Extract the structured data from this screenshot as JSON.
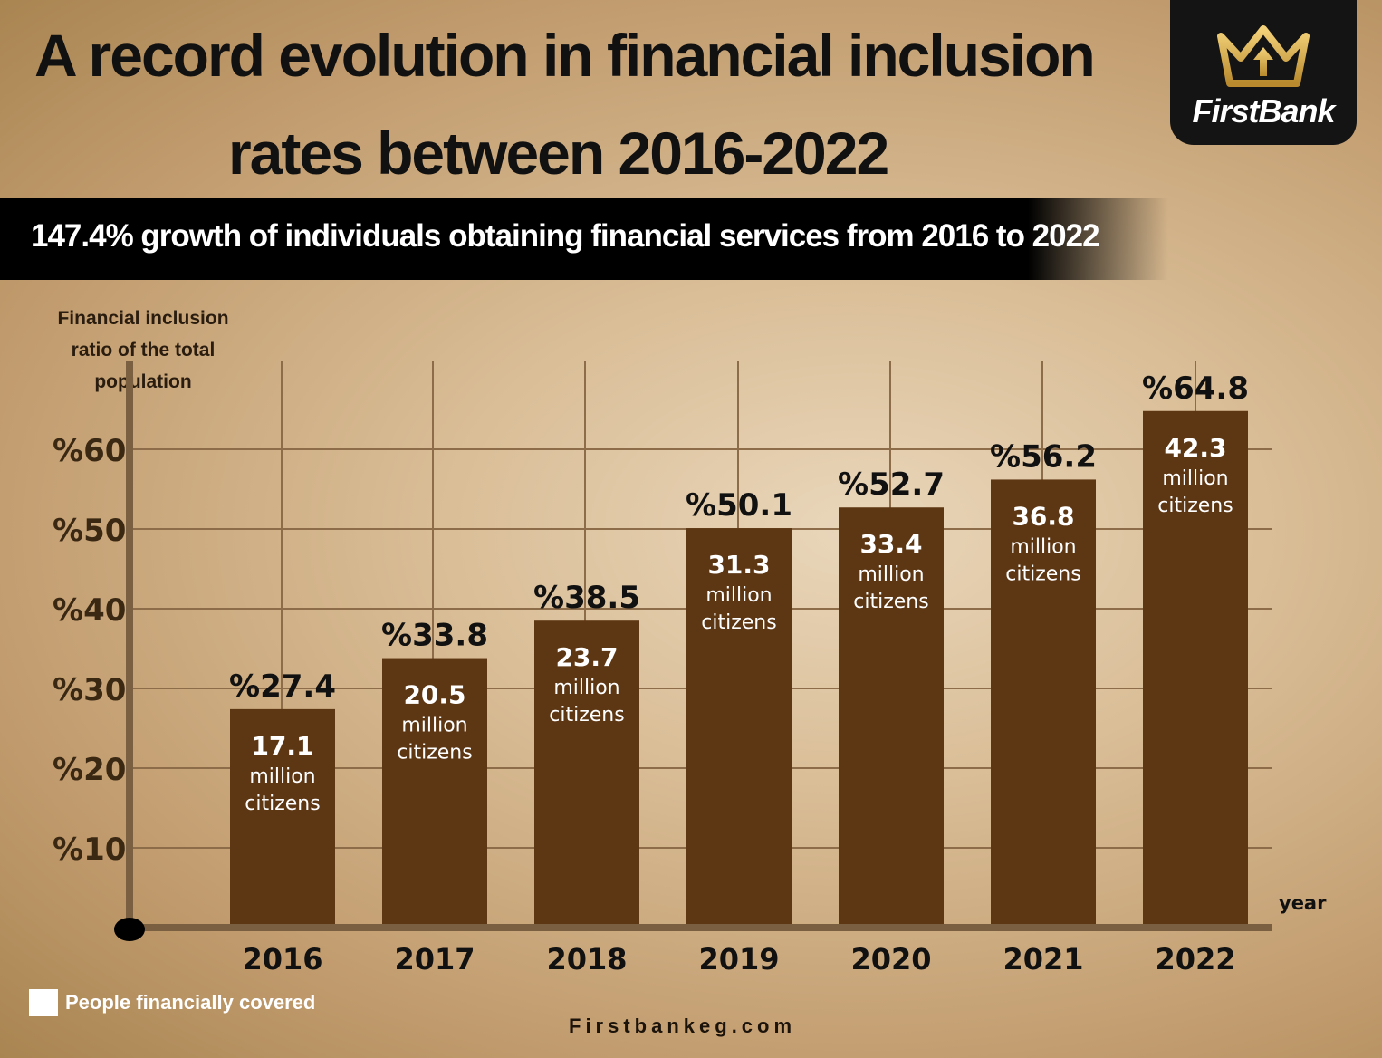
{
  "header": {
    "title_line1": "A record evolution in financial inclusion",
    "title_line2": "rates between 2016-2022",
    "banner": "147.4% growth of individuals obtaining financial services from 2016 to 2022"
  },
  "logo": {
    "text": "FirstBank",
    "icon": "crown-icon"
  },
  "chart_data": {
    "type": "bar",
    "ylabel": "Financial inclusion ratio of the total population",
    "xlabel": "year",
    "ylim": [
      0,
      70
    ],
    "yticks": [
      10,
      20,
      30,
      40,
      50,
      60
    ],
    "ytick_labels": [
      "%10",
      "%20",
      "%30",
      "%40",
      "%50",
      "%60"
    ],
    "categories": [
      "2016",
      "2017",
      "2018",
      "2019",
      "2020",
      "2021",
      "2022"
    ],
    "values": [
      27.4,
      33.8,
      38.5,
      50.1,
      52.7,
      56.2,
      64.8
    ],
    "value_labels": [
      "%27.4",
      "%33.8",
      "%38.5",
      "%50.1",
      "%52.7",
      "%56.2",
      "%64.8"
    ],
    "citizens_millions": [
      "17.1",
      "20.5",
      "23.7",
      "31.3",
      "33.4",
      "36.8",
      "42.3"
    ],
    "bar_text_line2": "million",
    "bar_text_line3": "citizens",
    "grid": true,
    "colors": {
      "bar": "#5d3613",
      "grid": "#8d6c49",
      "axis": "#7a5f40"
    }
  },
  "legend": {
    "label": "People financially covered",
    "color": "#ffffff"
  },
  "footer": {
    "url": "Firstbankeg.com"
  }
}
